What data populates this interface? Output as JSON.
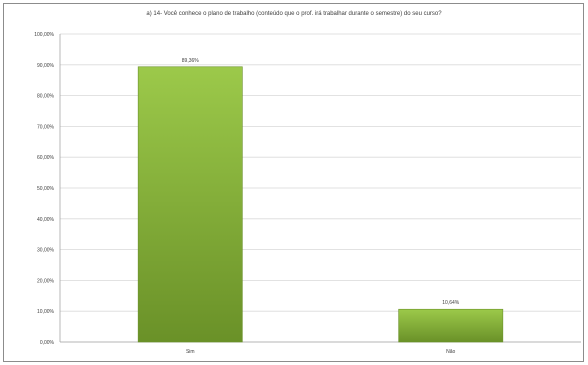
{
  "chart_data": {
    "type": "bar",
    "title": "a) 14- Você conhece o plano de trabalho (conteúdo que o prof. irá trabalhar durante o semestre) do seu curso?",
    "categories": [
      "Sim",
      "Não"
    ],
    "values": [
      89.36,
      10.64
    ],
    "data_labels": [
      "89,36%",
      "10,64%"
    ],
    "y_ticks": [
      "0,00%",
      "10,00%",
      "20,00%",
      "30,00%",
      "40,00%",
      "50,00%",
      "60,00%",
      "70,00%",
      "80,00%",
      "90,00%",
      "100,00%"
    ],
    "ylim": [
      0,
      100
    ],
    "grid": true,
    "legend": "none",
    "bar_color": "#8cb83a",
    "bar_color_dark": "#6a9128"
  }
}
